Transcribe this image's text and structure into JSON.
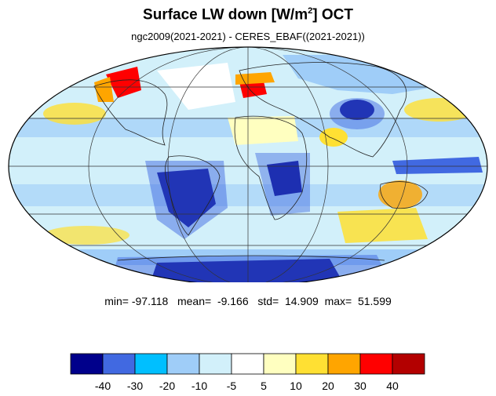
{
  "title": {
    "main": "Surface LW down [W/m",
    "superscript": "2",
    "suffix": "]  OCT"
  },
  "subtitle": "ngc2009(2021-2021) - CERES_EBAF((2021-2021))",
  "stats": {
    "min_label": "min=",
    "min": "-97.118",
    "mean_label": "mean=",
    "mean": "-9.166",
    "std_label": "std=",
    "std": "14.909",
    "max_label": "max=",
    "max": "51.599"
  },
  "colorbar": {
    "colors": [
      "#00008b",
      "#4169e1",
      "#00bfff",
      "#9fcdf8",
      "#d2f0fa",
      "#ffffff",
      "#ffffc0",
      "#ffe033",
      "#ffa500",
      "#ff0000",
      "#b30000"
    ],
    "tick_labels": [
      "-40",
      "-30",
      "-20",
      "-10",
      "-5",
      "5",
      "10",
      "20",
      "30",
      "40"
    ]
  },
  "map": {
    "projection": "mollweide",
    "ocean_base_color": "#d2f0fa",
    "graticule": true
  }
}
